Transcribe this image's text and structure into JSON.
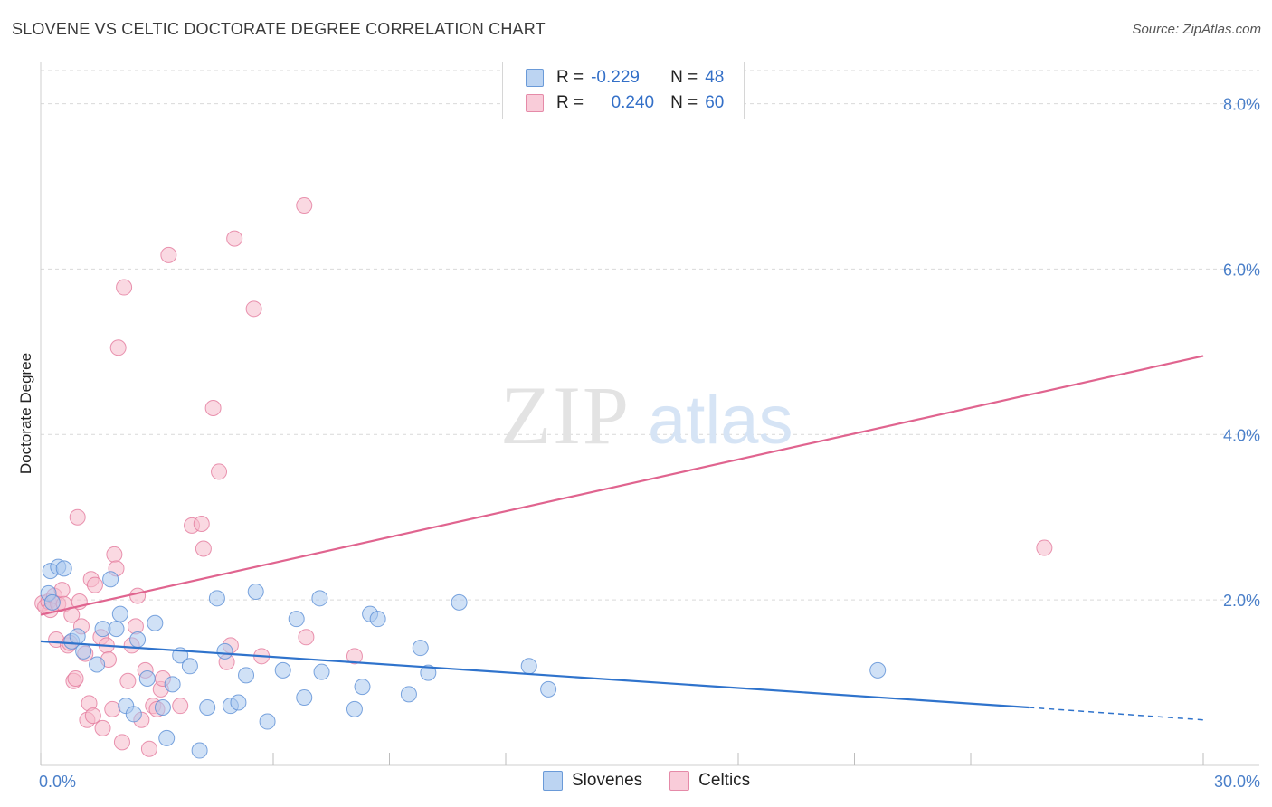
{
  "title": "SLOVENE VS CELTIC DOCTORATE DEGREE CORRELATION CHART",
  "source": "Source: ZipAtlas.com",
  "watermark": {
    "zip": "ZIP",
    "atlas": "atlas"
  },
  "legend": {
    "rows": [
      {
        "r_label": "R =",
        "r_value": "-0.229",
        "n_label": "N =",
        "n_value": "48"
      },
      {
        "r_label": "R =",
        "r_value": "0.240",
        "n_label": "N =",
        "n_value": "60"
      }
    ]
  },
  "bottom_legend": {
    "slovenes": "Slovenes",
    "celtics": "Celtics"
  },
  "colors": {
    "blue_fill": "#a9c8ef",
    "blue_stroke": "#5b8fd6",
    "blue_line": "#2f73cc",
    "pink_fill": "#f6b9cb",
    "pink_stroke": "#e3799c",
    "pink_line": "#e0648f",
    "tick_text": "#4a7fc9",
    "grid": "#d9d9d9"
  },
  "chart_data": {
    "type": "scatter",
    "title": "SLOVENE VS CELTIC DOCTORATE DEGREE CORRELATION CHART",
    "xlabel": "",
    "ylabel": "Doctorate Degree",
    "xlim": [
      0,
      30
    ],
    "ylim": [
      0,
      8.4
    ],
    "x_tick_labels": [
      {
        "value": 0,
        "label": "0.0%"
      },
      {
        "value": 30,
        "label": "30.0%"
      }
    ],
    "y_tick_labels": [
      {
        "value": 2,
        "label": "2.0%"
      },
      {
        "value": 4,
        "label": "4.0%"
      },
      {
        "value": 6,
        "label": "6.0%"
      },
      {
        "value": 8,
        "label": "8.0%"
      }
    ],
    "series": [
      {
        "name": "Slovenes",
        "color": "blue",
        "R": -0.229,
        "N": 48,
        "trend": {
          "x0": 0,
          "y0": 1.5,
          "x1": 25.5,
          "y1": 0.7,
          "dash_to_x": 30,
          "dash_to_y": 0.55
        },
        "points": [
          [
            0.2,
            2.08
          ],
          [
            0.3,
            1.97
          ],
          [
            0.25,
            2.35
          ],
          [
            0.45,
            2.4
          ],
          [
            0.6,
            2.38
          ],
          [
            0.8,
            1.5
          ],
          [
            0.95,
            1.56
          ],
          [
            1.1,
            1.38
          ],
          [
            1.45,
            1.22
          ],
          [
            1.6,
            1.65
          ],
          [
            1.8,
            2.25
          ],
          [
            1.95,
            1.65
          ],
          [
            2.05,
            1.83
          ],
          [
            2.2,
            0.72
          ],
          [
            2.4,
            0.62
          ],
          [
            2.5,
            1.52
          ],
          [
            2.75,
            1.05
          ],
          [
            2.95,
            1.72
          ],
          [
            3.15,
            0.7
          ],
          [
            3.25,
            0.33
          ],
          [
            3.4,
            0.98
          ],
          [
            3.6,
            1.33
          ],
          [
            3.85,
            1.2
          ],
          [
            4.1,
            0.18
          ],
          [
            4.3,
            0.7
          ],
          [
            4.55,
            2.02
          ],
          [
            4.75,
            1.38
          ],
          [
            4.9,
            0.72
          ],
          [
            5.1,
            0.76
          ],
          [
            5.3,
            1.09
          ],
          [
            5.55,
            2.1
          ],
          [
            5.85,
            0.53
          ],
          [
            6.25,
            1.15
          ],
          [
            6.6,
            1.77
          ],
          [
            6.8,
            0.82
          ],
          [
            7.2,
            2.02
          ],
          [
            7.25,
            1.13
          ],
          [
            8.1,
            0.68
          ],
          [
            8.3,
            0.95
          ],
          [
            8.5,
            1.83
          ],
          [
            8.7,
            1.77
          ],
          [
            9.5,
            0.86
          ],
          [
            9.8,
            1.42
          ],
          [
            10.0,
            1.12
          ],
          [
            10.8,
            1.97
          ],
          [
            12.6,
            1.2
          ],
          [
            13.1,
            0.92
          ],
          [
            21.6,
            1.15
          ]
        ]
      },
      {
        "name": "Celtics",
        "color": "pink",
        "R": 0.24,
        "N": 60,
        "trend": {
          "x0": 0,
          "y0": 1.82,
          "x1": 30,
          "y1": 4.95
        },
        "points": [
          [
            0.05,
            1.96
          ],
          [
            0.12,
            1.92
          ],
          [
            0.2,
            1.98
          ],
          [
            0.25,
            1.88
          ],
          [
            0.35,
            2.05
          ],
          [
            0.4,
            1.52
          ],
          [
            0.45,
            1.95
          ],
          [
            0.55,
            2.12
          ],
          [
            0.6,
            1.95
          ],
          [
            0.7,
            1.45
          ],
          [
            0.75,
            1.48
          ],
          [
            0.8,
            1.82
          ],
          [
            0.85,
            1.02
          ],
          [
            0.9,
            1.05
          ],
          [
            0.95,
            3.0
          ],
          [
            1.0,
            1.98
          ],
          [
            1.05,
            1.68
          ],
          [
            1.15,
            1.35
          ],
          [
            1.2,
            0.55
          ],
          [
            1.25,
            0.75
          ],
          [
            1.3,
            2.25
          ],
          [
            1.35,
            0.6
          ],
          [
            1.4,
            2.18
          ],
          [
            1.55,
            1.55
          ],
          [
            1.6,
            0.45
          ],
          [
            1.7,
            1.45
          ],
          [
            1.75,
            1.28
          ],
          [
            1.85,
            0.68
          ],
          [
            1.9,
            2.55
          ],
          [
            1.95,
            2.38
          ],
          [
            2.0,
            5.05
          ],
          [
            2.1,
            0.28
          ],
          [
            2.15,
            5.78
          ],
          [
            2.25,
            1.02
          ],
          [
            2.35,
            1.45
          ],
          [
            2.45,
            1.68
          ],
          [
            2.5,
            2.05
          ],
          [
            2.6,
            0.55
          ],
          [
            2.7,
            1.15
          ],
          [
            2.8,
            0.2
          ],
          [
            2.9,
            0.72
          ],
          [
            3.0,
            0.68
          ],
          [
            3.1,
            0.92
          ],
          [
            3.15,
            1.05
          ],
          [
            3.3,
            6.17
          ],
          [
            3.6,
            0.72
          ],
          [
            3.9,
            2.9
          ],
          [
            4.15,
            2.92
          ],
          [
            4.2,
            2.62
          ],
          [
            4.45,
            4.32
          ],
          [
            4.6,
            3.55
          ],
          [
            4.8,
            1.25
          ],
          [
            4.9,
            1.45
          ],
          [
            5.0,
            6.37
          ],
          [
            5.5,
            5.52
          ],
          [
            5.7,
            1.32
          ],
          [
            6.8,
            6.77
          ],
          [
            6.85,
            1.55
          ],
          [
            8.1,
            1.32
          ],
          [
            25.9,
            2.63
          ]
        ]
      }
    ]
  }
}
